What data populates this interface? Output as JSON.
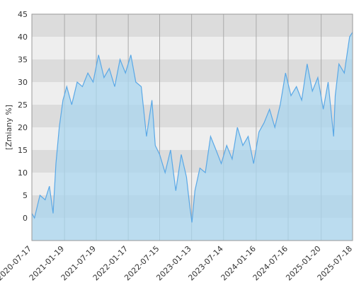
{
  "chart_data": {
    "type": "area",
    "y_label": "[Zmiany %]",
    "x": [
      "2020-07-17",
      "2020-08-01",
      "2020-09-01",
      "2020-10-01",
      "2020-10-25",
      "2020-11-15",
      "2020-12-01",
      "2020-12-20",
      "2021-01-10",
      "2021-02-01",
      "2021-03-01",
      "2021-04-01",
      "2021-05-01",
      "2021-06-01",
      "2021-07-01",
      "2021-08-01",
      "2021-09-01",
      "2021-10-01",
      "2021-11-01",
      "2021-12-01",
      "2022-01-01",
      "2022-02-01",
      "2022-03-01",
      "2022-04-01",
      "2022-05-01",
      "2022-06-01",
      "2022-06-20",
      "2022-07-15",
      "2022-08-15",
      "2022-09-15",
      "2022-10-15",
      "2022-11-15",
      "2022-12-15",
      "2023-01-01",
      "2023-01-15",
      "2023-02-01",
      "2023-03-01",
      "2023-04-01",
      "2023-05-01",
      "2023-06-01",
      "2023-07-01",
      "2023-08-01",
      "2023-09-01",
      "2023-10-01",
      "2023-11-01",
      "2023-12-01",
      "2024-01-01",
      "2024-02-01",
      "2024-03-01",
      "2024-04-01",
      "2024-05-01",
      "2024-06-01",
      "2024-07-01",
      "2024-08-01",
      "2024-09-01",
      "2024-10-01",
      "2024-11-01",
      "2024-12-01",
      "2025-01-01",
      "2025-02-01",
      "2025-03-01",
      "2025-04-01",
      "2025-04-10",
      "2025-05-01",
      "2025-06-01",
      "2025-07-01",
      "2025-07-18"
    ],
    "series": [
      {
        "color": "#5aa8e6",
        "fill": "#a9d6ef",
        "values": [
          1,
          0,
          5,
          4,
          7,
          1,
          12,
          20,
          26,
          29,
          25,
          30,
          29,
          32,
          30,
          36,
          31,
          33,
          29,
          35,
          32,
          36,
          30,
          29,
          18,
          26,
          16,
          14,
          10,
          15,
          6,
          14,
          9,
          3,
          -1,
          6,
          11,
          10,
          18,
          15,
          12,
          16,
          13,
          20,
          16,
          18,
          12,
          19,
          21,
          24,
          20,
          25,
          32,
          27,
          29,
          26,
          34,
          28,
          31,
          24,
          30,
          18,
          27,
          34,
          32,
          40,
          41
        ]
      }
    ],
    "xlim": [
      "2020-07-17",
      "2025-07-18"
    ],
    "xticks": [
      "2020-07-17",
      "2021-01-19",
      "2021-07-19",
      "2022-01-17",
      "2022-07-15",
      "2023-01-13",
      "2023-07-14",
      "2024-01-16",
      "2024-07-16",
      "2025-01-20",
      "2025-07-18"
    ],
    "ylim": [
      -5,
      45
    ],
    "yticks": [
      0,
      5,
      10,
      15,
      20,
      25,
      30,
      35,
      40,
      45
    ],
    "grid": true
  }
}
